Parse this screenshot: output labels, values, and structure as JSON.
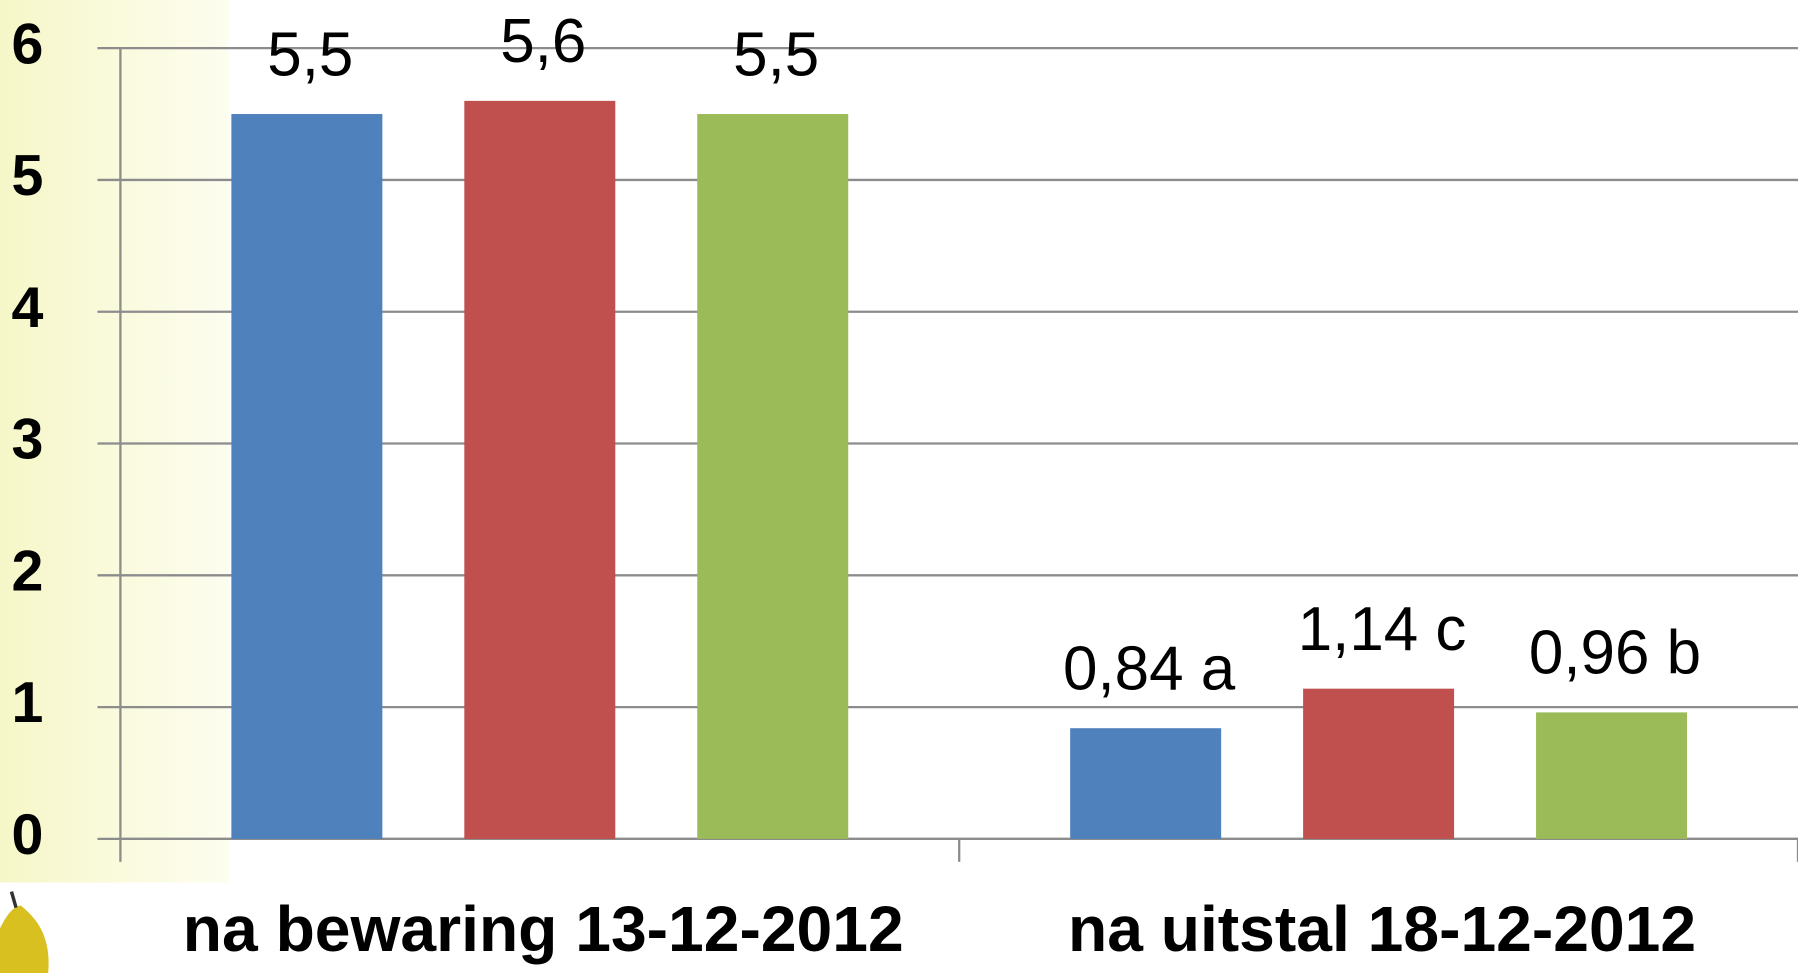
{
  "chart_data": {
    "type": "bar",
    "categories": [
      "na bewaring 13-12-2012",
      "na uitstal 18-12-2012"
    ],
    "series": [
      {
        "color": "#4f81bd",
        "values": [
          5.5,
          0.84
        ],
        "value_labels": [
          "5,5",
          "0,84 a"
        ]
      },
      {
        "color": "#c0504d",
        "values": [
          5.6,
          1.14
        ],
        "value_labels": [
          "5,6",
          "1,14 c"
        ]
      },
      {
        "color": "#9bbb59",
        "values": [
          5.5,
          0.96
        ],
        "value_labels": [
          "5,5",
          "0,96 b"
        ]
      }
    ],
    "ylim": [
      0,
      6
    ],
    "yticks": [
      0,
      1,
      2,
      3,
      4,
      5,
      6
    ],
    "grid": true
  }
}
